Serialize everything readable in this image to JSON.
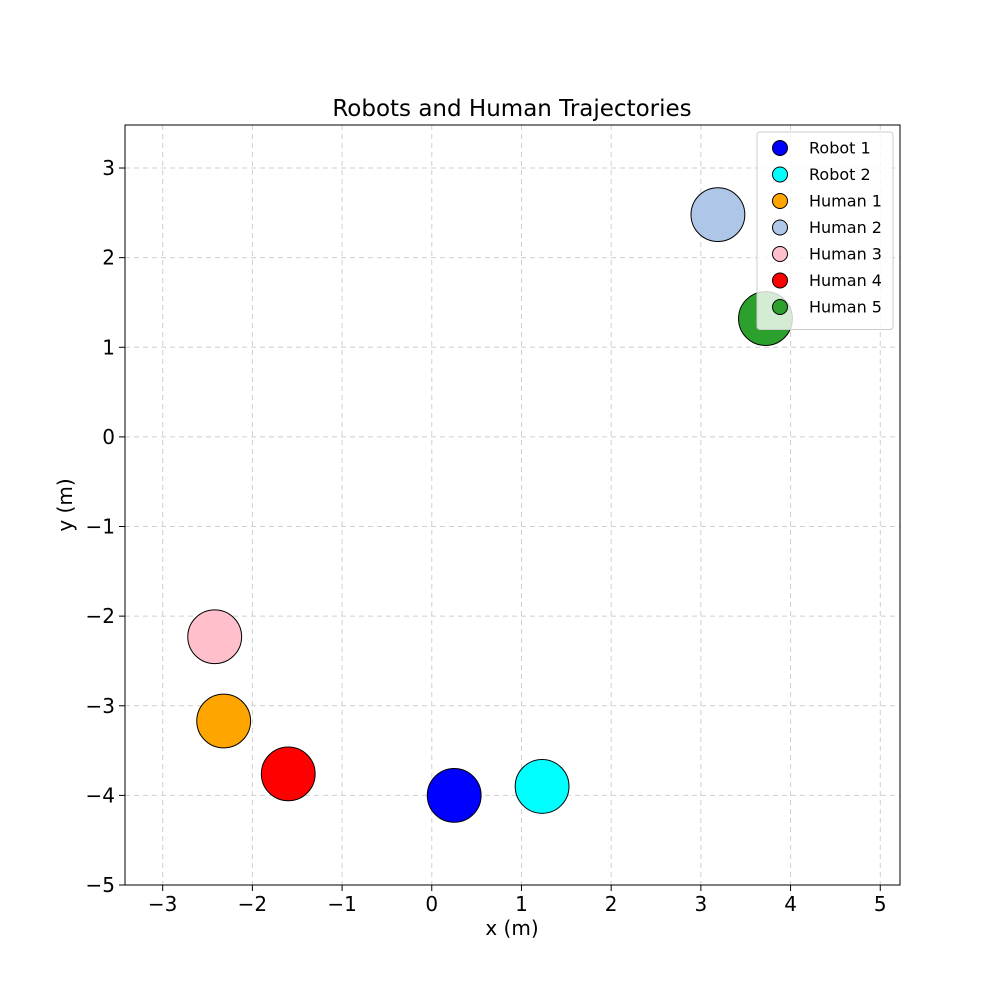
{
  "chart_data": {
    "type": "scatter",
    "title": "Robots and Human Trajectories",
    "xlabel": "x (m)",
    "ylabel": "y (m)",
    "xlim": [
      -3.42,
      5.22
    ],
    "ylim": [
      -5.0,
      3.48
    ],
    "xticks": [
      -3,
      -2,
      -1,
      0,
      1,
      2,
      3,
      4,
      5
    ],
    "yticks": [
      -5,
      -4,
      -3,
      -2,
      -1,
      0,
      1,
      2,
      3
    ],
    "grid": true,
    "legend_position": "top-right",
    "marker_radius": 0.3,
    "series": [
      {
        "name": "Robot 1",
        "color": "#0000ff",
        "x": 0.25,
        "y": -4.0
      },
      {
        "name": "Robot 2",
        "color": "#00ffff",
        "x": 1.23,
        "y": -3.9
      },
      {
        "name": "Human 1",
        "color": "#ffa500",
        "x": -2.32,
        "y": -3.17
      },
      {
        "name": "Human 2",
        "color": "#aec7e8",
        "x": 3.19,
        "y": 2.48
      },
      {
        "name": "Human 3",
        "color": "#ffc0cb",
        "x": -2.42,
        "y": -2.23
      },
      {
        "name": "Human 4",
        "color": "#ff0000",
        "x": -1.6,
        "y": -3.76
      },
      {
        "name": "Human 5",
        "color": "#2ca02c",
        "x": 3.72,
        "y": 1.32
      }
    ]
  }
}
